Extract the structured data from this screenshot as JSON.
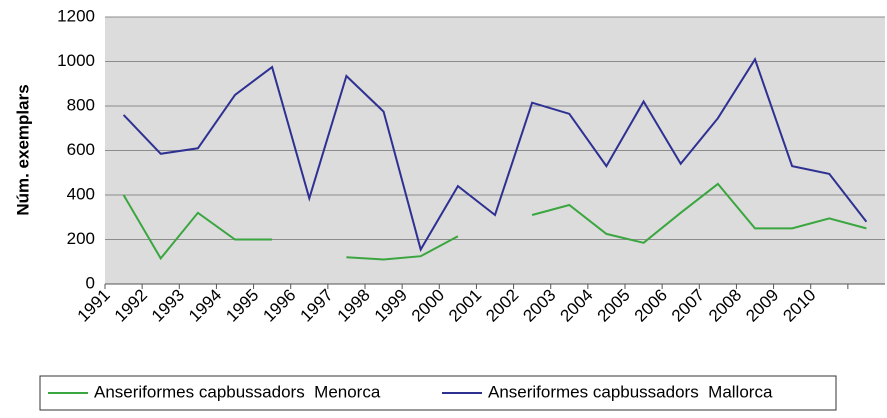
{
  "chart_data": {
    "type": "line",
    "y_label": "Núm. exemplars",
    "categories": [
      "1991",
      "1992",
      "1993",
      "1994",
      "1995",
      "1996",
      "1997",
      "1998",
      "1999",
      "2000",
      "2001",
      "2002",
      "2003",
      "2004",
      "2005",
      "2006",
      "2007",
      "2008",
      "2009",
      "2010",
      null
    ],
    "series": [
      {
        "name": "Anseriformes capbussadors  Menorca",
        "color": "#3aa63f",
        "values": [
          400,
          115,
          320,
          200,
          200,
          null,
          120,
          110,
          125,
          215,
          null,
          310,
          355,
          225,
          185,
          320,
          450,
          250,
          250,
          295,
          250
        ]
      },
      {
        "name": "Anseriformes capbussadors  Mallorca",
        "color": "#2e3192",
        "values": [
          760,
          585,
          610,
          850,
          975,
          385,
          935,
          775,
          155,
          440,
          310,
          815,
          765,
          530,
          820,
          540,
          745,
          1010,
          530,
          495,
          280
        ]
      }
    ],
    "ylim": [
      0,
      1200
    ],
    "yticks": [
      0,
      200,
      400,
      600,
      800,
      1000,
      1200
    ],
    "grid": true
  }
}
